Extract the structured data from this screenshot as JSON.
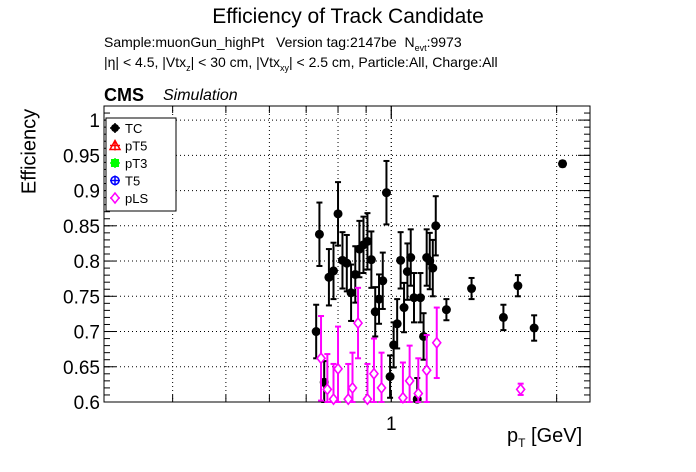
{
  "chart_data": {
    "type": "scatter",
    "title": "Efficiency of Track Candidate",
    "info_line1": {
      "sample": "Sample:muonGun_highPt",
      "version": "Version tag:2147be",
      "nevt_prefix": "N",
      "nevt_sub": "evt",
      "nevt_value": ":9973"
    },
    "info_line2": {
      "eta": "|η| < 4.5, |Vtx",
      "vtxz_sub": "z",
      "mid": "| < 30 cm, |Vtx",
      "vtxxy_sub": "xy",
      "rest": "| < 2.5 cm, Particle:All, Charge:All"
    },
    "cms_label": "CMS",
    "simulation_label": "Simulation",
    "xlabel": {
      "base": "p",
      "sub": "T",
      "unit": " [GeV]"
    },
    "ylabel": "Efficiency",
    "x_scale": "log",
    "xlim": [
      0.3,
      2.3
    ],
    "ylim": [
      0.6,
      1.02
    ],
    "yticks": [
      0.6,
      0.65,
      0.7,
      0.75,
      0.8,
      0.85,
      0.9,
      0.95,
      1.0
    ],
    "ytick_labels": [
      "0.6",
      "0.65",
      "0.7",
      "0.75",
      "0.8",
      "0.85",
      "0.9",
      "0.95",
      "1"
    ],
    "xticks_labeled": [
      1
    ],
    "xtick_labels": [
      "1"
    ],
    "grid": true,
    "legend_placement": "top-left",
    "series": [
      {
        "name": "TC",
        "color": "#000000",
        "marker": "filled-circle",
        "points": [
          {
            "x": 0.73,
            "y": 0.7,
            "yerr": 0.038
          },
          {
            "x": 0.74,
            "y": 0.838,
            "yerr": 0.045
          },
          {
            "x": 0.755,
            "y": 0.628,
            "yerr": 0.03
          },
          {
            "x": 0.77,
            "y": 0.777,
            "yerr": 0.04
          },
          {
            "x": 0.785,
            "y": 0.786,
            "yerr": 0.04
          },
          {
            "x": 0.8,
            "y": 0.867,
            "yerr": 0.045
          },
          {
            "x": 0.815,
            "y": 0.801,
            "yerr": 0.04
          },
          {
            "x": 0.83,
            "y": 0.797,
            "yerr": 0.04
          },
          {
            "x": 0.845,
            "y": 0.755,
            "yerr": 0.04
          },
          {
            "x": 0.86,
            "y": 0.781,
            "yerr": 0.04
          },
          {
            "x": 0.875,
            "y": 0.817,
            "yerr": 0.04
          },
          {
            "x": 0.89,
            "y": 0.823,
            "yerr": 0.04
          },
          {
            "x": 0.905,
            "y": 0.828,
            "yerr": 0.04
          },
          {
            "x": 0.92,
            "y": 0.802,
            "yerr": 0.04
          },
          {
            "x": 0.935,
            "y": 0.728,
            "yerr": 0.035
          },
          {
            "x": 0.95,
            "y": 0.746,
            "yerr": 0.035
          },
          {
            "x": 0.965,
            "y": 0.772,
            "yerr": 0.04
          },
          {
            "x": 0.98,
            "y": 0.897,
            "yerr": 0.045
          },
          {
            "x": 0.995,
            "y": 0.636,
            "yerr": 0.03
          },
          {
            "x": 1.01,
            "y": 0.681,
            "yerr": 0.032
          },
          {
            "x": 1.025,
            "y": 0.711,
            "yerr": 0.035
          },
          {
            "x": 1.04,
            "y": 0.801,
            "yerr": 0.04
          },
          {
            "x": 1.055,
            "y": 0.734,
            "yerr": 0.035
          },
          {
            "x": 1.07,
            "y": 0.785,
            "yerr": 0.04
          },
          {
            "x": 1.085,
            "y": 0.805,
            "yerr": 0.04
          },
          {
            "x": 1.1,
            "y": 0.748,
            "yerr": 0.035
          },
          {
            "x": 1.115,
            "y": 0.604,
            "yerr": 0.03
          },
          {
            "x": 1.13,
            "y": 0.748,
            "yerr": 0.035
          },
          {
            "x": 1.145,
            "y": 0.693,
            "yerr": 0.033
          },
          {
            "x": 1.16,
            "y": 0.805,
            "yerr": 0.04
          },
          {
            "x": 1.175,
            "y": 0.8,
            "yerr": 0.04
          },
          {
            "x": 1.19,
            "y": 0.79,
            "yerr": 0.04
          },
          {
            "x": 1.205,
            "y": 0.85,
            "yerr": 0.042
          },
          {
            "x": 1.26,
            "y": 0.731,
            "yerr": 0.015
          },
          {
            "x": 1.4,
            "y": 0.761,
            "yerr": 0.015
          },
          {
            "x": 1.6,
            "y": 0.72,
            "yerr": 0.018
          },
          {
            "x": 1.7,
            "y": 0.765,
            "yerr": 0.015
          },
          {
            "x": 1.82,
            "y": 0.705,
            "yerr": 0.018
          },
          {
            "x": 2.05,
            "y": 0.938,
            "yerr": 0.004
          }
        ]
      },
      {
        "name": "pT5",
        "color": "#ff0000",
        "marker": "open-triangle",
        "points": []
      },
      {
        "name": "pT3",
        "color": "#00ff00",
        "marker": "filled-square",
        "points": []
      },
      {
        "name": "T5",
        "color": "#0000ff",
        "marker": "open-circle",
        "points": []
      },
      {
        "name": "pLS",
        "color": "#ff00ff",
        "marker": "open-diamond",
        "points": [
          {
            "x": 0.745,
            "y": 0.662,
            "yerr": 0.06
          },
          {
            "x": 0.765,
            "y": 0.618,
            "yerr": 0.05
          },
          {
            "x": 0.785,
            "y": 0.604,
            "yerr": 0.05
          },
          {
            "x": 0.8,
            "y": 0.647,
            "yerr": 0.06
          },
          {
            "x": 0.835,
            "y": 0.604,
            "yerr": 0.05
          },
          {
            "x": 0.85,
            "y": 0.62,
            "yerr": 0.05
          },
          {
            "x": 0.87,
            "y": 0.712,
            "yerr": 0.05
          },
          {
            "x": 0.905,
            "y": 0.604,
            "yerr": 0.05
          },
          {
            "x": 0.93,
            "y": 0.64,
            "yerr": 0.05
          },
          {
            "x": 0.96,
            "y": 0.62,
            "yerr": 0.05
          },
          {
            "x": 1.05,
            "y": 0.606,
            "yerr": 0.05
          },
          {
            "x": 1.08,
            "y": 0.63,
            "yerr": 0.05
          },
          {
            "x": 1.12,
            "y": 0.612,
            "yerr": 0.05
          },
          {
            "x": 1.16,
            "y": 0.645,
            "yerr": 0.05
          },
          {
            "x": 1.21,
            "y": 0.684,
            "yerr": 0.05
          },
          {
            "x": 1.72,
            "y": 0.618,
            "yerr": 0.008
          }
        ]
      }
    ]
  }
}
